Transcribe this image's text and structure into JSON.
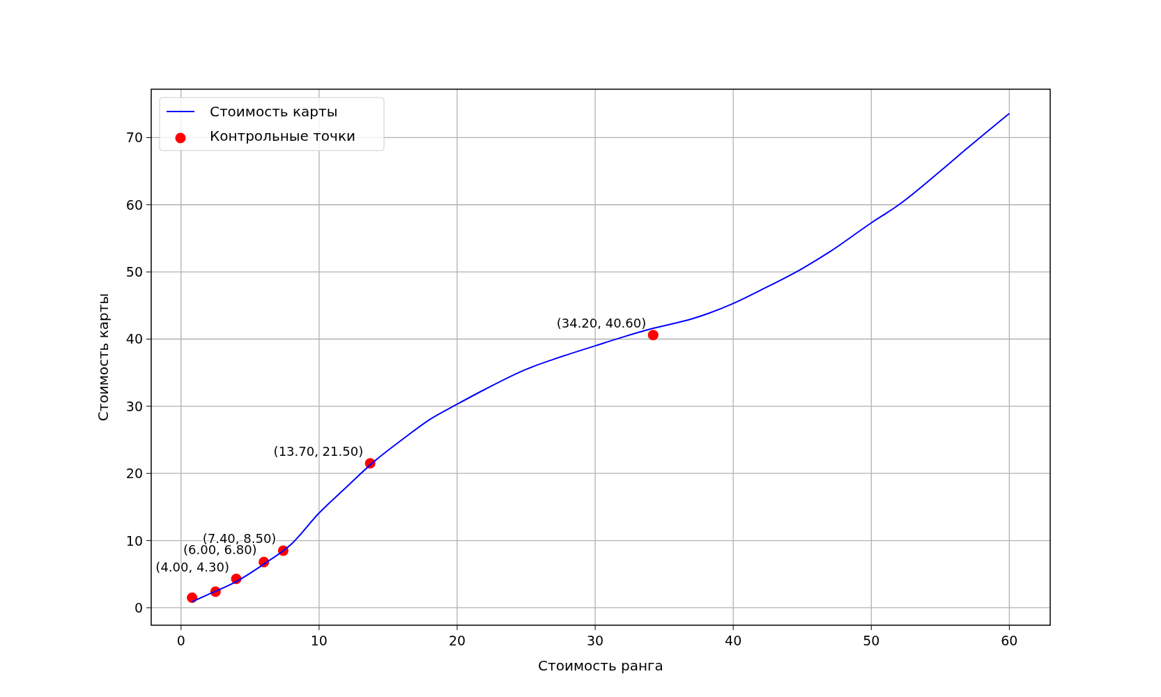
{
  "chart_data": {
    "type": "line",
    "xlabel": "Стоимость ранга",
    "ylabel": "Стоимость карты",
    "xlim": [
      -2.16,
      62.96
    ],
    "ylim": [
      -2.6,
      77.2
    ],
    "xticks": [
      0,
      10,
      20,
      30,
      40,
      50,
      60
    ],
    "yticks": [
      0,
      10,
      20,
      30,
      40,
      50,
      60,
      70
    ],
    "grid": true,
    "legend": "top left",
    "series": [
      {
        "name": "Стоимость карты",
        "color": "#0000ff",
        "x": [
          0.8,
          2,
          4,
          6,
          8,
          10,
          12,
          14,
          16,
          18,
          20,
          22,
          25,
          27,
          30,
          32,
          34.2,
          37,
          40,
          42,
          45,
          47,
          50,
          52,
          55,
          57,
          60
        ],
        "values": [
          0.9,
          2,
          3.9,
          6.5,
          9.5,
          14.1,
          18,
          21.8,
          25,
          28,
          30.3,
          32.5,
          35.5,
          37,
          39,
          40.3,
          41.6,
          43,
          45.3,
          47.3,
          50.5,
          53,
          57.3,
          60,
          65,
          68.5,
          73.6
        ]
      },
      {
        "name": "Контрольные точки",
        "type": "scatter",
        "color": "#ff0000",
        "marker": "circle",
        "x": [
          0.8,
          2.5,
          4,
          6,
          7.4,
          13.7,
          34.2
        ],
        "values": [
          1.5,
          2.4,
          4.3,
          6.8,
          8.5,
          21.5,
          40.6
        ]
      }
    ],
    "annotations": [
      {
        "text": "(4.00, 4.30)",
        "x": 4,
        "y": 4.3
      },
      {
        "text": "(6.00, 6.80)",
        "x": 6,
        "y": 6.8
      },
      {
        "text": "(7.40, 8.50)",
        "x": 7.4,
        "y": 8.5
      },
      {
        "text": "(13.70, 21.50)",
        "x": 13.7,
        "y": 21.5
      },
      {
        "text": "(34.20, 40.60)",
        "x": 34.2,
        "y": 40.6
      }
    ]
  }
}
